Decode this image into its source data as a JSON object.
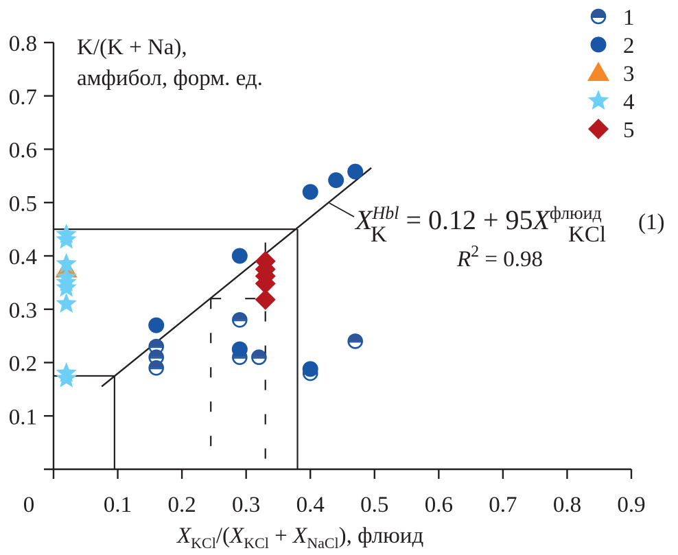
{
  "chart_data": {
    "type": "scatter",
    "title": "",
    "ylabel_lines": [
      "K/(K + Na),",
      "амфибол, форм. ед."
    ],
    "xlabel": {
      "parts": [
        {
          "text": "X",
          "style": "italic"
        },
        {
          "text": "KCl",
          "style": "sub"
        },
        {
          "text": "/(",
          "style": "normal"
        },
        {
          "text": "X",
          "style": "italic"
        },
        {
          "text": "KCl",
          "style": "sub"
        },
        {
          "text": " + ",
          "style": "normal"
        },
        {
          "text": "X",
          "style": "italic"
        },
        {
          "text": "NaCl",
          "style": "sub"
        },
        {
          "text": "),  флюид",
          "style": "normal"
        }
      ],
      "plain": "XKCl/(XKCl + XNaCl), флюид"
    },
    "xlim": [
      0,
      0.9
    ],
    "ylim": [
      0,
      0.8
    ],
    "x_ticks": [
      "0",
      "0.1",
      "0.2",
      "0.3",
      "0.4",
      "0.5",
      "0.6",
      "0.7",
      "0.8",
      "0.9"
    ],
    "x_tick_values": [
      0,
      0.1,
      0.2,
      0.3,
      0.4,
      0.5,
      0.6,
      0.7,
      0.8,
      0.9
    ],
    "y_ticks": [
      "0.1",
      "0.2",
      "0.3",
      "0.4",
      "0.5",
      "0.6",
      "0.7",
      "0.8"
    ],
    "y_tick_values": [
      0.1,
      0.2,
      0.3,
      0.4,
      0.5,
      0.6,
      0.7,
      0.8
    ],
    "grid": false,
    "legend_position": "top-right",
    "colors": {
      "blue": "#1a56a6",
      "orange": "#f4892a",
      "lightblue": "#6dcff6",
      "red": "#b5181e",
      "axis": "#231f20"
    },
    "series": [
      {
        "name": "1",
        "marker": "half-filled-circle",
        "points": [
          {
            "x": 0.16,
            "y": 0.23
          },
          {
            "x": 0.16,
            "y": 0.21
          },
          {
            "x": 0.16,
            "y": 0.19
          },
          {
            "x": 0.29,
            "y": 0.28
          },
          {
            "x": 0.29,
            "y": 0.21
          },
          {
            "x": 0.32,
            "y": 0.21
          },
          {
            "x": 0.4,
            "y": 0.18
          },
          {
            "x": 0.47,
            "y": 0.24
          }
        ]
      },
      {
        "name": "2",
        "marker": "filled-circle",
        "points": [
          {
            "x": 0.16,
            "y": 0.27
          },
          {
            "x": 0.29,
            "y": 0.4
          },
          {
            "x": 0.29,
            "y": 0.225
          },
          {
            "x": 0.4,
            "y": 0.188
          },
          {
            "x": 0.4,
            "y": 0.52
          },
          {
            "x": 0.44,
            "y": 0.542
          },
          {
            "x": 0.47,
            "y": 0.558
          }
        ]
      },
      {
        "name": "3",
        "marker": "triangle",
        "points": [
          {
            "x": 0.02,
            "y": 0.375
          }
        ]
      },
      {
        "name": "4",
        "marker": "star",
        "points": [
          {
            "x": 0.02,
            "y": 0.44
          },
          {
            "x": 0.02,
            "y": 0.43
          },
          {
            "x": 0.02,
            "y": 0.385
          },
          {
            "x": 0.02,
            "y": 0.36
          },
          {
            "x": 0.02,
            "y": 0.35
          },
          {
            "x": 0.02,
            "y": 0.34
          },
          {
            "x": 0.02,
            "y": 0.31
          },
          {
            "x": 0.02,
            "y": 0.18
          },
          {
            "x": 0.02,
            "y": 0.17
          }
        ]
      },
      {
        "name": "5",
        "marker": "diamond",
        "points": [
          {
            "x": 0.33,
            "y": 0.39
          },
          {
            "x": 0.33,
            "y": 0.375
          },
          {
            "x": 0.33,
            "y": 0.362
          },
          {
            "x": 0.33,
            "y": 0.348
          },
          {
            "x": 0.33,
            "y": 0.318
          }
        ]
      }
    ],
    "regression_line": {
      "from": {
        "x": 0.075,
        "y": 0.155
      },
      "to": {
        "x": 0.495,
        "y": 0.565
      }
    },
    "guide_lines_solid": [
      {
        "from": {
          "x": 0,
          "y": 0.45
        },
        "to": {
          "x": 0.38,
          "y": 0.45
        }
      },
      {
        "from": {
          "x": 0.38,
          "y": 0.45
        },
        "to": {
          "x": 0.38,
          "y": 0
        }
      },
      {
        "from": {
          "x": 0,
          "y": 0.175
        },
        "to": {
          "x": 0.095,
          "y": 0.175
        }
      },
      {
        "from": {
          "x": 0.095,
          "y": 0.175
        },
        "to": {
          "x": 0.095,
          "y": 0
        }
      }
    ],
    "guide_lines_dashed": [
      {
        "from": {
          "x": 0.245,
          "y": 0.32
        },
        "to": {
          "x": 0.33,
          "y": 0.32
        }
      },
      {
        "from": {
          "x": 0.245,
          "y": 0.32
        },
        "to": {
          "x": 0.245,
          "y": 0
        }
      },
      {
        "from": {
          "x": 0.33,
          "y": 0.425
        },
        "to": {
          "x": 0.33,
          "y": 0
        }
      }
    ],
    "equation": {
      "lhs_var": "X",
      "lhs_sub": "K",
      "lhs_sup": "Hbl",
      "rhs_text": " = 0.12 + 95",
      "rhs_var": "X",
      "rhs_sub": "KCl",
      "rhs_sup": "флюид",
      "label": "(1)",
      "r2_var": "R",
      "r2_sup": "2",
      "r2_text": " = 0.98"
    },
    "legend": [
      {
        "label": "1",
        "marker": "half-filled-circle"
      },
      {
        "label": "2",
        "marker": "filled-circle"
      },
      {
        "label": "3",
        "marker": "triangle"
      },
      {
        "label": "4",
        "marker": "star"
      },
      {
        "label": "5",
        "marker": "diamond"
      }
    ]
  }
}
